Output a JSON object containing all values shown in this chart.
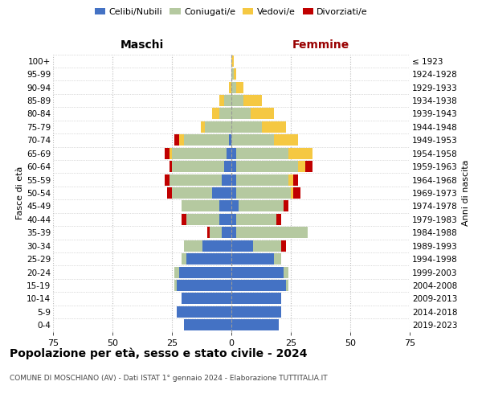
{
  "age_groups_bottom_to_top": [
    "0-4",
    "5-9",
    "10-14",
    "15-19",
    "20-24",
    "25-29",
    "30-34",
    "35-39",
    "40-44",
    "45-49",
    "50-54",
    "55-59",
    "60-64",
    "65-69",
    "70-74",
    "75-79",
    "80-84",
    "85-89",
    "90-94",
    "95-99",
    "100+"
  ],
  "birth_years_bottom_to_top": [
    "2019-2023",
    "2014-2018",
    "2009-2013",
    "2004-2008",
    "1999-2003",
    "1994-1998",
    "1989-1993",
    "1984-1988",
    "1979-1983",
    "1974-1978",
    "1969-1973",
    "1964-1968",
    "1959-1963",
    "1954-1958",
    "1949-1953",
    "1944-1948",
    "1939-1943",
    "1934-1938",
    "1929-1933",
    "1924-1928",
    "≤ 1923"
  ],
  "colors": {
    "celibi": "#4472C4",
    "coniugati": "#B5C9A0",
    "vedovi": "#F5C842",
    "divorziati": "#C00000"
  },
  "males": {
    "celibi": [
      20,
      23,
      21,
      23,
      22,
      19,
      12,
      4,
      5,
      5,
      8,
      4,
      3,
      2,
      1,
      0,
      0,
      0,
      0,
      0,
      0
    ],
    "coniugati": [
      0,
      0,
      0,
      1,
      2,
      2,
      8,
      5,
      14,
      16,
      17,
      22,
      22,
      23,
      19,
      11,
      5,
      3,
      0,
      0,
      0
    ],
    "vedovi": [
      0,
      0,
      0,
      0,
      0,
      0,
      0,
      0,
      0,
      0,
      0,
      0,
      0,
      1,
      2,
      2,
      3,
      2,
      1,
      0,
      0
    ],
    "divorziati": [
      0,
      0,
      0,
      0,
      0,
      0,
      0,
      1,
      2,
      0,
      2,
      2,
      1,
      2,
      2,
      0,
      0,
      0,
      0,
      0,
      0
    ]
  },
  "females": {
    "celibi": [
      20,
      21,
      21,
      23,
      22,
      18,
      9,
      2,
      2,
      3,
      2,
      2,
      2,
      2,
      0,
      0,
      0,
      0,
      0,
      0,
      0
    ],
    "coniugati": [
      0,
      0,
      0,
      1,
      2,
      3,
      12,
      30,
      17,
      19,
      23,
      22,
      26,
      22,
      18,
      13,
      8,
      5,
      2,
      1,
      0
    ],
    "vedovi": [
      0,
      0,
      0,
      0,
      0,
      0,
      0,
      0,
      0,
      0,
      1,
      2,
      3,
      10,
      10,
      10,
      10,
      8,
      3,
      1,
      1
    ],
    "divorziati": [
      0,
      0,
      0,
      0,
      0,
      0,
      2,
      0,
      2,
      2,
      3,
      2,
      3,
      0,
      0,
      0,
      0,
      0,
      0,
      0,
      0
    ]
  },
  "xlim": 75,
  "title": "Popolazione per età, sesso e stato civile - 2024",
  "subtitle": "COMUNE DI MOSCHIANO (AV) - Dati ISTAT 1° gennaio 2024 - Elaborazione TUTTITALIA.IT",
  "ylabel_left": "Fasce di età",
  "ylabel_right": "Anni di nascita",
  "header_left": "Maschi",
  "header_right": "Femmine",
  "legend_labels": [
    "Celibi/Nubili",
    "Coniugati/e",
    "Vedovi/e",
    "Divorziati/e"
  ],
  "bg_color": "#ffffff",
  "grid_color": "#bbbbbb"
}
